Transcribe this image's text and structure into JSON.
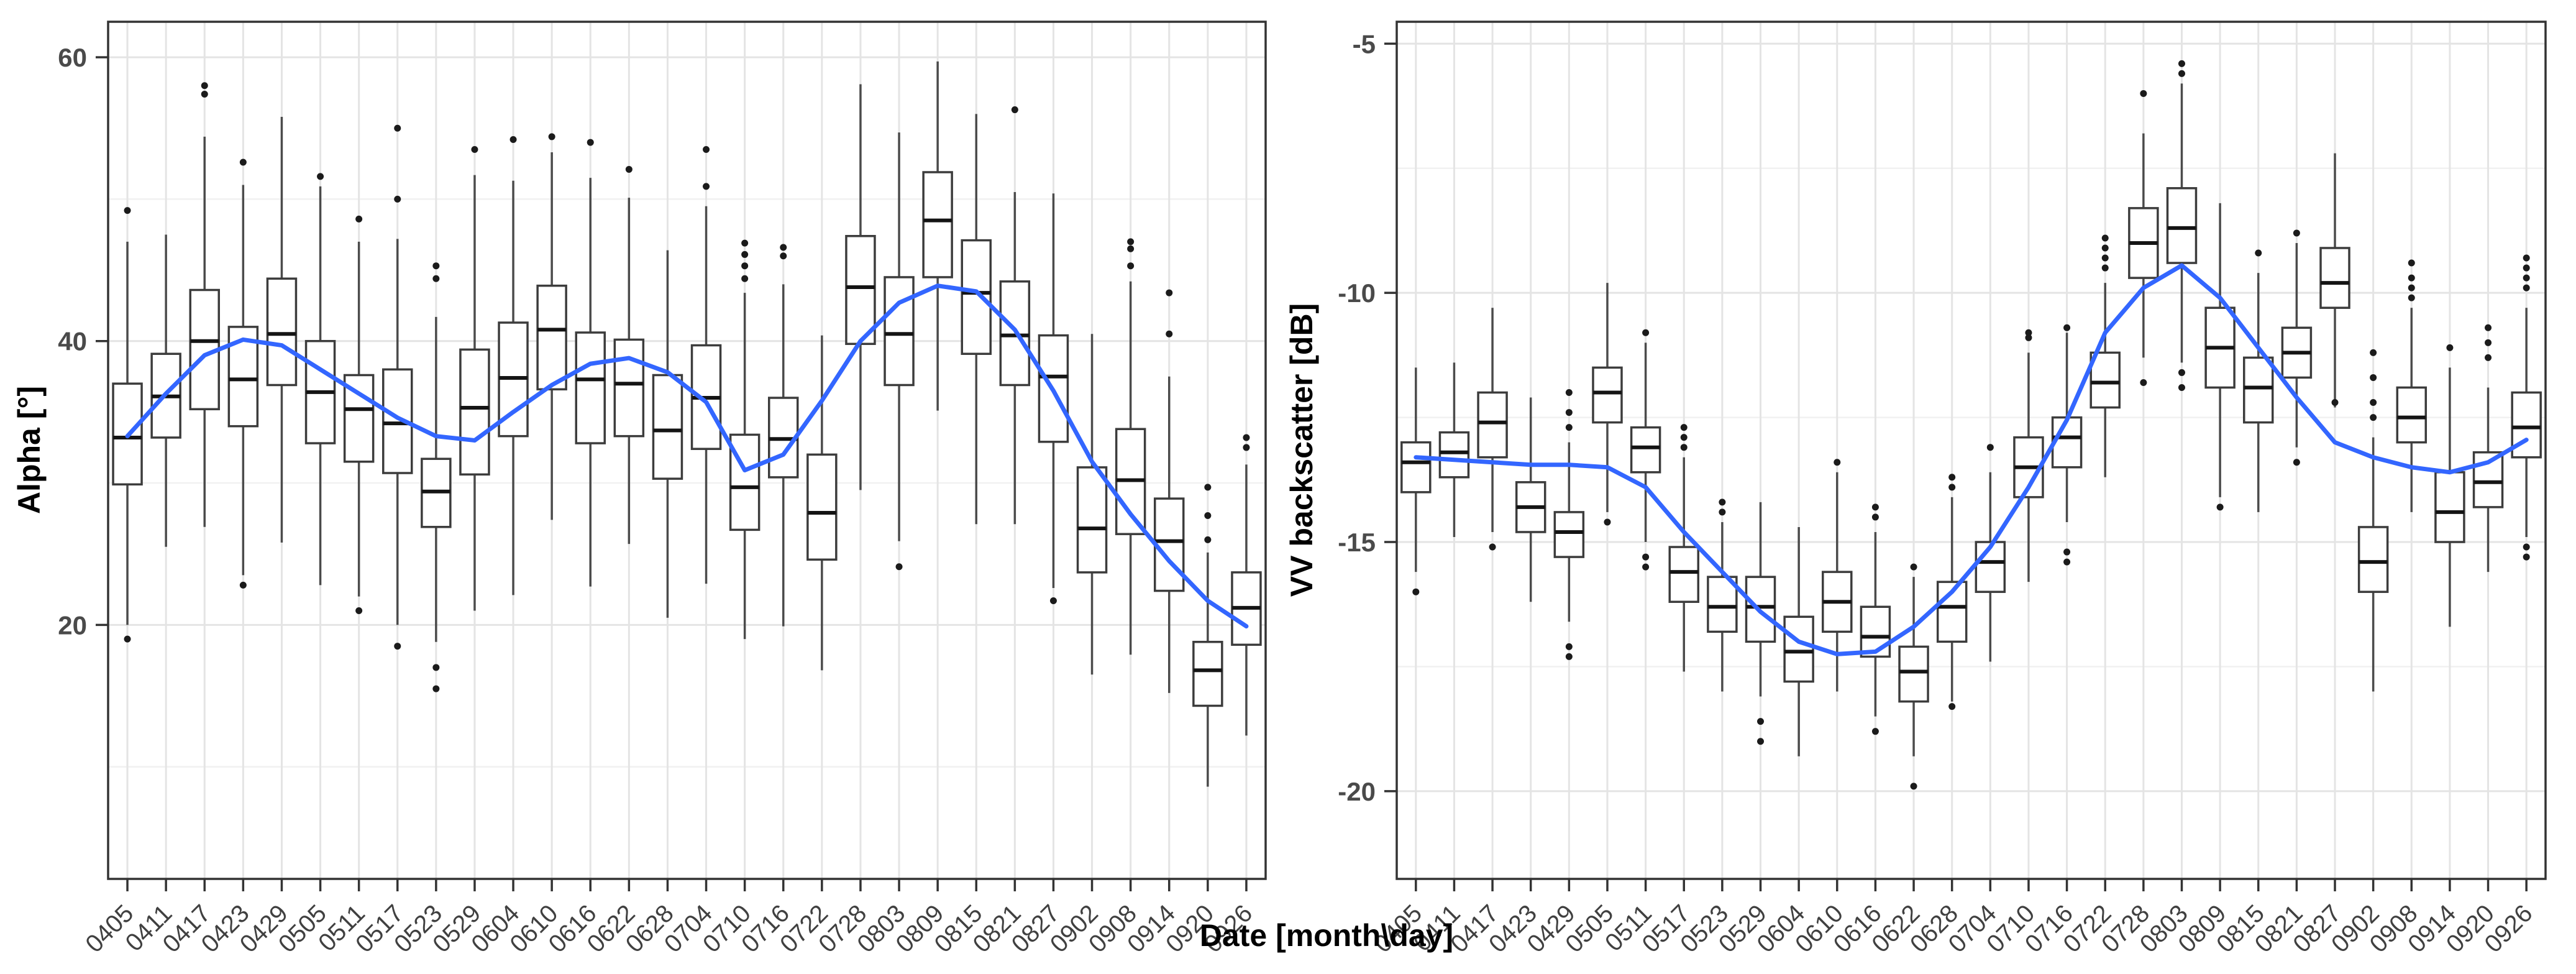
{
  "figure": {
    "x_axis_title": "Date [month\\day]",
    "colors": {
      "smooth_line": "#3366FF",
      "box_border": "#3c3c3c",
      "box_fill": "#ffffff",
      "median": "#141414",
      "whisker": "#4b4b4b",
      "outlier": "#1b1b1b",
      "grid_major": "#e4e4e4",
      "grid_minor": "#f1f1f1",
      "panel_border": "#333333",
      "tick_mark": "#333333",
      "axis_text": "#404040",
      "title_text": "#000000",
      "background": "#ffffff"
    }
  },
  "chart_data": [
    {
      "type": "boxplot",
      "name": "alpha",
      "title": "",
      "xlabel": "Date [month\\day]",
      "ylabel": "Alpha [°]",
      "legend": "none",
      "grid": "on",
      "ylim": [
        2.1,
        62.5
      ],
      "yticks": [
        20,
        40,
        60
      ],
      "ytick_labels": [
        "20",
        "40",
        "60"
      ],
      "yminor": [
        10,
        30,
        50
      ],
      "categories": [
        "0405",
        "0411",
        "0417",
        "0423",
        "0429",
        "0505",
        "0511",
        "0517",
        "0523",
        "0529",
        "0604",
        "0610",
        "0616",
        "0622",
        "0628",
        "0704",
        "0710",
        "0716",
        "0722",
        "0728",
        "0803",
        "0809",
        "0815",
        "0821",
        "0827",
        "0902",
        "0908",
        "0914",
        "0920",
        "0926"
      ],
      "boxes": [
        {
          "med": 33.2,
          "q1": 29.9,
          "q3": 37.0,
          "lo": 20.0,
          "hi": 47.0,
          "out": [
            49.2,
            19.0
          ]
        },
        {
          "med": 36.1,
          "q1": 33.2,
          "q3": 39.1,
          "lo": 25.5,
          "hi": 47.5,
          "out": []
        },
        {
          "med": 40.0,
          "q1": 35.2,
          "q3": 43.6,
          "lo": 26.9,
          "hi": 54.4,
          "out": [
            57.4,
            58.0
          ]
        },
        {
          "med": 37.3,
          "q1": 34.0,
          "q3": 41.0,
          "lo": 23.5,
          "hi": 51.0,
          "out": [
            52.6,
            22.8
          ]
        },
        {
          "med": 40.5,
          "q1": 36.9,
          "q3": 44.4,
          "lo": 25.8,
          "hi": 55.8,
          "out": []
        },
        {
          "med": 36.4,
          "q1": 32.8,
          "q3": 40.0,
          "lo": 22.8,
          "hi": 50.9,
          "out": [
            51.6
          ]
        },
        {
          "med": 35.2,
          "q1": 31.5,
          "q3": 37.6,
          "lo": 22.0,
          "hi": 47.0,
          "out": [
            48.6,
            21.0
          ]
        },
        {
          "med": 34.2,
          "q1": 30.7,
          "q3": 38.0,
          "lo": 20.0,
          "hi": 47.2,
          "out": [
            55.0,
            50.0,
            18.5
          ]
        },
        {
          "med": 29.4,
          "q1": 26.9,
          "q3": 31.7,
          "lo": 18.8,
          "hi": 41.7,
          "out": [
            45.3,
            44.4,
            17.0,
            15.5
          ]
        },
        {
          "med": 35.3,
          "q1": 30.6,
          "q3": 39.4,
          "lo": 21.0,
          "hi": 51.7,
          "out": [
            53.5
          ]
        },
        {
          "med": 37.4,
          "q1": 33.3,
          "q3": 41.3,
          "lo": 22.1,
          "hi": 51.3,
          "out": [
            54.2
          ]
        },
        {
          "med": 40.8,
          "q1": 36.6,
          "q3": 43.9,
          "lo": 27.4,
          "hi": 53.3,
          "out": [
            54.4
          ]
        },
        {
          "med": 37.3,
          "q1": 32.8,
          "q3": 40.6,
          "lo": 22.7,
          "hi": 51.5,
          "out": [
            54.0
          ]
        },
        {
          "med": 37.0,
          "q1": 33.3,
          "q3": 40.1,
          "lo": 25.7,
          "hi": 50.1,
          "out": [
            52.1
          ]
        },
        {
          "med": 33.7,
          "q1": 30.3,
          "q3": 37.6,
          "lo": 20.5,
          "hi": 46.4,
          "out": []
        },
        {
          "med": 36.0,
          "q1": 32.4,
          "q3": 39.7,
          "lo": 22.9,
          "hi": 49.5,
          "out": [
            50.9,
            53.5
          ]
        },
        {
          "med": 29.7,
          "q1": 26.7,
          "q3": 33.4,
          "lo": 19.0,
          "hi": 43.4,
          "out": [
            44.4,
            45.3,
            46.1,
            46.9
          ]
        },
        {
          "med": 33.1,
          "q1": 30.4,
          "q3": 36.0,
          "lo": 19.9,
          "hi": 44.0,
          "out": [
            46.0,
            46.6
          ]
        },
        {
          "med": 27.9,
          "q1": 24.6,
          "q3": 32.0,
          "lo": 16.8,
          "hi": 40.4,
          "out": []
        },
        {
          "med": 43.8,
          "q1": 39.8,
          "q3": 47.4,
          "lo": 29.5,
          "hi": 58.1,
          "out": []
        },
        {
          "med": 40.5,
          "q1": 36.9,
          "q3": 44.5,
          "lo": 25.9,
          "hi": 54.7,
          "out": [
            24.1
          ]
        },
        {
          "med": 48.5,
          "q1": 44.5,
          "q3": 51.9,
          "lo": 35.1,
          "hi": 59.7,
          "out": []
        },
        {
          "med": 43.4,
          "q1": 39.1,
          "q3": 47.1,
          "lo": 27.1,
          "hi": 56.0,
          "out": []
        },
        {
          "med": 40.4,
          "q1": 36.9,
          "q3": 44.2,
          "lo": 27.1,
          "hi": 50.5,
          "out": [
            56.3
          ]
        },
        {
          "med": 37.5,
          "q1": 32.9,
          "q3": 40.4,
          "lo": 22.6,
          "hi": 50.4,
          "out": [
            21.7
          ]
        },
        {
          "med": 26.8,
          "q1": 23.7,
          "q3": 31.1,
          "lo": 16.5,
          "hi": 40.5,
          "out": []
        },
        {
          "med": 30.2,
          "q1": 26.4,
          "q3": 33.8,
          "lo": 17.9,
          "hi": 44.2,
          "out": [
            45.3,
            46.5,
            47.0
          ]
        },
        {
          "med": 25.9,
          "q1": 22.4,
          "q3": 28.9,
          "lo": 15.2,
          "hi": 37.5,
          "out": [
            40.5,
            43.4
          ]
        },
        {
          "med": 16.8,
          "q1": 14.3,
          "q3": 18.8,
          "lo": 8.6,
          "hi": 25.1,
          "out": [
            26.0,
            27.7,
            29.7
          ]
        },
        {
          "med": 21.2,
          "q1": 18.6,
          "q3": 23.7,
          "lo": 12.2,
          "hi": 31.3,
          "out": [
            32.5,
            33.2
          ]
        }
      ],
      "smooth": [
        33.3,
        36.3,
        39.0,
        40.1,
        39.7,
        38.0,
        36.3,
        34.6,
        33.3,
        33.0,
        35.0,
        36.9,
        38.4,
        38.8,
        37.8,
        35.7,
        30.9,
        32.0,
        35.8,
        40.0,
        42.7,
        43.9,
        43.5,
        40.8,
        36.5,
        31.5,
        27.8,
        24.5,
        21.7,
        19.9
      ]
    },
    {
      "type": "boxplot",
      "name": "vv",
      "title": "",
      "xlabel": "Date [month\\day]",
      "ylabel": "VV backscatter [dB]",
      "legend": "none",
      "grid": "on",
      "ylim": [
        -21.76,
        -4.56
      ],
      "yticks": [
        -5,
        -10,
        -15,
        -20
      ],
      "ytick_labels": [
        "-5",
        "-10",
        "-15",
        "-20"
      ],
      "yminor": [
        -7.5,
        -12.5,
        -17.5
      ],
      "categories": [
        "0405",
        "0411",
        "0417",
        "0423",
        "0429",
        "0505",
        "0511",
        "0517",
        "0523",
        "0529",
        "0604",
        "0610",
        "0616",
        "0622",
        "0628",
        "0704",
        "0710",
        "0716",
        "0722",
        "0728",
        "0803",
        "0809",
        "0815",
        "0821",
        "0827",
        "0902",
        "0908",
        "0914",
        "0920",
        "0926"
      ],
      "boxes": [
        {
          "med": -13.4,
          "q1": -14.0,
          "q3": -13.0,
          "lo": -15.6,
          "hi": -11.5,
          "out": [
            -16.0
          ]
        },
        {
          "med": -13.2,
          "q1": -13.7,
          "q3": -12.8,
          "lo": -14.9,
          "hi": -11.4,
          "out": []
        },
        {
          "med": -12.6,
          "q1": -13.3,
          "q3": -12.0,
          "lo": -14.8,
          "hi": -10.3,
          "out": [
            -15.1
          ]
        },
        {
          "med": -14.3,
          "q1": -14.8,
          "q3": -13.8,
          "lo": -16.2,
          "hi": -12.1,
          "out": []
        },
        {
          "med": -14.8,
          "q1": -15.3,
          "q3": -14.4,
          "lo": -16.6,
          "hi": -13.0,
          "out": [
            -12.0,
            -12.4,
            -12.7,
            -17.1,
            -17.3
          ]
        },
        {
          "med": -12.0,
          "q1": -12.6,
          "q3": -11.5,
          "lo": -14.4,
          "hi": -9.8,
          "out": [
            -14.6
          ]
        },
        {
          "med": -13.1,
          "q1": -13.6,
          "q3": -12.7,
          "lo": -15.0,
          "hi": -11.0,
          "out": [
            -10.8,
            -15.3,
            -15.5
          ]
        },
        {
          "med": -15.6,
          "q1": -16.2,
          "q3": -15.1,
          "lo": -17.6,
          "hi": -13.3,
          "out": [
            -12.7,
            -12.9,
            -13.1
          ]
        },
        {
          "med": -16.3,
          "q1": -16.8,
          "q3": -15.7,
          "lo": -18.0,
          "hi": -14.6,
          "out": [
            -14.2,
            -14.4
          ]
        },
        {
          "med": -16.3,
          "q1": -17.0,
          "q3": -15.7,
          "lo": -18.1,
          "hi": -14.2,
          "out": [
            -18.6,
            -19.0
          ]
        },
        {
          "med": -17.2,
          "q1": -17.8,
          "q3": -16.5,
          "lo": -19.3,
          "hi": -14.7,
          "out": []
        },
        {
          "med": -16.2,
          "q1": -16.8,
          "q3": -15.6,
          "lo": -18.0,
          "hi": -13.6,
          "out": [
            -13.4
          ]
        },
        {
          "med": -16.9,
          "q1": -17.3,
          "q3": -16.3,
          "lo": -18.5,
          "hi": -14.8,
          "out": [
            -14.3,
            -14.5,
            -18.8
          ]
        },
        {
          "med": -17.6,
          "q1": -18.2,
          "q3": -17.1,
          "lo": -19.3,
          "hi": -15.7,
          "out": [
            -15.5,
            -19.9
          ]
        },
        {
          "med": -16.3,
          "q1": -17.0,
          "q3": -15.8,
          "lo": -18.2,
          "hi": -14.1,
          "out": [
            -13.7,
            -13.9,
            -18.3
          ]
        },
        {
          "med": -15.4,
          "q1": -16.0,
          "q3": -15.0,
          "lo": -17.4,
          "hi": -13.6,
          "out": [
            -13.1
          ]
        },
        {
          "med": -13.5,
          "q1": -14.1,
          "q3": -12.9,
          "lo": -15.8,
          "hi": -11.2,
          "out": [
            -10.8,
            -10.9
          ]
        },
        {
          "med": -12.9,
          "q1": -13.5,
          "q3": -12.5,
          "lo": -14.6,
          "hi": -10.8,
          "out": [
            -10.7,
            -15.2,
            -15.4
          ]
        },
        {
          "med": -11.8,
          "q1": -12.3,
          "q3": -11.2,
          "lo": -13.7,
          "hi": -9.8,
          "out": [
            -8.9,
            -9.1,
            -9.3,
            -9.5
          ]
        },
        {
          "med": -9.0,
          "q1": -9.7,
          "q3": -8.3,
          "lo": -11.3,
          "hi": -6.8,
          "out": [
            -6.0,
            -11.8
          ]
        },
        {
          "med": -8.7,
          "q1": -9.4,
          "q3": -7.9,
          "lo": -11.4,
          "hi": -5.8,
          "out": [
            -5.4,
            -5.6,
            -11.6,
            -11.9
          ]
        },
        {
          "med": -11.1,
          "q1": -11.9,
          "q3": -10.3,
          "lo": -14.1,
          "hi": -8.2,
          "out": [
            -14.3
          ]
        },
        {
          "med": -11.9,
          "q1": -12.6,
          "q3": -11.3,
          "lo": -14.4,
          "hi": -9.6,
          "out": [
            -9.2
          ]
        },
        {
          "med": -11.2,
          "q1": -11.7,
          "q3": -10.7,
          "lo": -13.1,
          "hi": -9.0,
          "out": [
            -8.8,
            -13.4
          ]
        },
        {
          "med": -9.8,
          "q1": -10.3,
          "q3": -9.1,
          "lo": -12.3,
          "hi": -7.2,
          "out": [
            -12.2
          ]
        },
        {
          "med": -15.4,
          "q1": -16.0,
          "q3": -14.7,
          "lo": -18.0,
          "hi": -12.9,
          "out": [
            -11.2,
            -11.7,
            -12.2,
            -12.5
          ]
        },
        {
          "med": -12.5,
          "q1": -13.0,
          "q3": -11.9,
          "lo": -14.4,
          "hi": -10.3,
          "out": [
            -9.4,
            -9.7,
            -9.9,
            -10.1
          ]
        },
        {
          "med": -14.4,
          "q1": -15.0,
          "q3": -13.6,
          "lo": -16.7,
          "hi": -11.5,
          "out": [
            -11.1
          ]
        },
        {
          "med": -13.8,
          "q1": -14.3,
          "q3": -13.2,
          "lo": -15.6,
          "hi": -11.9,
          "out": [
            -10.7,
            -11.0,
            -11.3
          ]
        },
        {
          "med": -12.7,
          "q1": -13.3,
          "q3": -12.0,
          "lo": -14.9,
          "hi": -10.3,
          "out": [
            -9.3,
            -9.5,
            -9.7,
            -9.9,
            -15.1,
            -15.3
          ]
        }
      ],
      "smooth": [
        -13.3,
        -13.35,
        -13.4,
        -13.45,
        -13.45,
        -13.5,
        -13.9,
        -14.8,
        -15.6,
        -16.4,
        -17.0,
        -17.25,
        -17.2,
        -16.7,
        -16.0,
        -15.1,
        -13.9,
        -12.55,
        -10.8,
        -9.9,
        -9.45,
        -10.1,
        -11.1,
        -12.1,
        -13.0,
        -13.3,
        -13.5,
        -13.6,
        -13.4,
        -12.95
      ]
    }
  ]
}
